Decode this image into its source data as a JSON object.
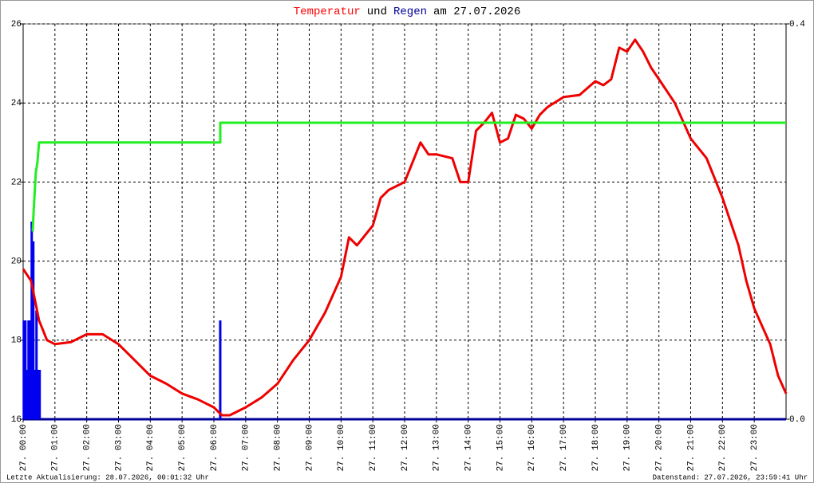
{
  "chart_data": {
    "type": "line",
    "title": [
      "Temperatur",
      "und",
      "Regen",
      "am 27.07.2026"
    ],
    "title_colors": [
      "#ff0000",
      "#000000",
      "#000099",
      "#000000"
    ],
    "footer_left": "Letzte Aktualisierung: 28.07.2026, 00:01:32 Uhr",
    "footer_right": "Datenstand: 27.07.2026, 23:59:41 Uhr",
    "xlim": [
      0,
      24
    ],
    "xticks": [
      {
        "value": 0,
        "label": "27. 00:00"
      },
      {
        "value": 1,
        "label": "27. 01:00"
      },
      {
        "value": 2,
        "label": "27. 02:00"
      },
      {
        "value": 3,
        "label": "27. 03:00"
      },
      {
        "value": 4,
        "label": "27. 04:00"
      },
      {
        "value": 5,
        "label": "27. 05:00"
      },
      {
        "value": 6,
        "label": "27. 06:00"
      },
      {
        "value": 7,
        "label": "27. 07:00"
      },
      {
        "value": 8,
        "label": "27. 08:00"
      },
      {
        "value": 9,
        "label": "27. 09:00"
      },
      {
        "value": 10,
        "label": "27. 10:00"
      },
      {
        "value": 11,
        "label": "27. 11:00"
      },
      {
        "value": 12,
        "label": "27. 12:00"
      },
      {
        "value": 13,
        "label": "27. 13:00"
      },
      {
        "value": 14,
        "label": "27. 14:00"
      },
      {
        "value": 15,
        "label": "27. 15:00"
      },
      {
        "value": 16,
        "label": "27. 16:00"
      },
      {
        "value": 17,
        "label": "27. 17:00"
      },
      {
        "value": 18,
        "label": "27. 18:00"
      },
      {
        "value": 19,
        "label": "27. 19:00"
      },
      {
        "value": 20,
        "label": "27. 20:00"
      },
      {
        "value": 21,
        "label": "27. 21:00"
      },
      {
        "value": 22,
        "label": "27. 22:00"
      },
      {
        "value": 23,
        "label": "27. 23:00"
      }
    ],
    "ylim": [
      16,
      26
    ],
    "yticks": [
      16,
      18,
      20,
      22,
      24,
      26
    ],
    "y2lim": [
      0,
      0.4
    ],
    "y2ticks": [
      {
        "value": 0,
        "label": "0.0"
      },
      0.4
    ],
    "grid": true,
    "series": [
      {
        "type": "line",
        "color": "#ee0000",
        "axis": "y",
        "x": [
          0,
          0.25,
          0.5,
          0.75,
          1,
          1.5,
          2,
          2.5,
          3,
          3.5,
          4,
          4.5,
          5,
          5.5,
          6,
          6.25,
          6.5,
          7,
          7.5,
          8,
          8.5,
          9,
          9.5,
          10,
          10.25,
          10.5,
          11,
          11.25,
          11.5,
          12,
          12.25,
          12.5,
          12.75,
          13,
          13.5,
          13.75,
          14,
          14.25,
          14.5,
          14.75,
          15,
          15.25,
          15.5,
          15.75,
          16,
          16.25,
          16.5,
          17,
          17.5,
          18,
          18.25,
          18.5,
          18.75,
          19,
          19.25,
          19.5,
          19.75,
          20,
          20.5,
          21,
          21.5,
          22,
          22.25,
          22.5,
          22.75,
          23,
          23.5,
          23.75,
          24
        ],
        "values": [
          19.8,
          19.5,
          18.5,
          18.0,
          17.9,
          17.95,
          18.15,
          18.15,
          17.9,
          17.5,
          17.1,
          16.9,
          16.65,
          16.5,
          16.3,
          16.1,
          16.1,
          16.3,
          16.55,
          16.9,
          17.5,
          18.0,
          18.7,
          19.6,
          20.6,
          20.4,
          20.9,
          21.6,
          21.8,
          22.0,
          22.5,
          23.0,
          22.7,
          22.7,
          22.6,
          22.0,
          22.0,
          23.3,
          23.5,
          23.75,
          23.0,
          23.1,
          23.7,
          23.6,
          23.35,
          23.7,
          23.9,
          24.15,
          24.2,
          24.55,
          24.45,
          24.6,
          25.4,
          25.3,
          25.6,
          25.3,
          24.9,
          24.6,
          24.0,
          23.1,
          22.6,
          21.6,
          21.0,
          20.4,
          19.5,
          18.8,
          17.9,
          17.1,
          16.65
        ]
      },
      {
        "type": "line",
        "color": "#22ee22",
        "axis": "y2",
        "x": [
          0.3,
          0.33,
          0.4,
          0.45,
          0.5,
          6.2,
          6.2,
          24
        ],
        "values": [
          0.19,
          0.21,
          0.25,
          0.26,
          0.28,
          0.28,
          0.3,
          0.3
        ]
      },
      {
        "type": "bar",
        "color": "#0000ee",
        "axis": "y2",
        "x": [
          0.02,
          0.07,
          0.12,
          0.17,
          0.22,
          0.27,
          0.32,
          0.37,
          0.42,
          0.47,
          0.52,
          6.2
        ],
        "values": [
          0.1,
          0.1,
          0.05,
          0.1,
          0.1,
          0.2,
          0.18,
          0.05,
          0.11,
          0.05,
          0.05,
          0.1
        ]
      }
    ]
  }
}
